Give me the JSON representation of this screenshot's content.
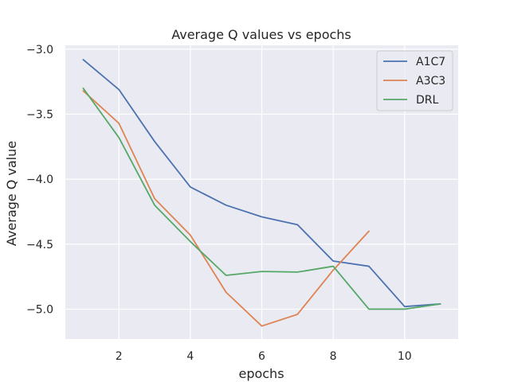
{
  "chart_data": {
    "type": "line",
    "title": "Average Q values vs epochs",
    "xlabel": "epochs",
    "ylabel": "Average Q value",
    "xlim": [
      0.5,
      11.5
    ],
    "ylim": [
      -5.23,
      -2.97
    ],
    "xticks": [
      2,
      4,
      6,
      8,
      10
    ],
    "yticks": [
      -3.0,
      -3.5,
      -4.0,
      -4.5,
      -5.0
    ],
    "ytick_labels": [
      "−3.0",
      "−3.5",
      "−4.0",
      "−4.5",
      "−5.0"
    ],
    "grid": true,
    "background": "#eaeaf2",
    "legend_position": "top-right",
    "series": [
      {
        "name": "A1C7",
        "color": "#4c72b0",
        "x": [
          1,
          2,
          3,
          4,
          5,
          6,
          7,
          8,
          9,
          10,
          11
        ],
        "values": [
          -3.08,
          -3.31,
          -3.71,
          -4.06,
          -4.2,
          -4.29,
          -4.35,
          -4.63,
          -4.67,
          -4.98,
          -4.96
        ]
      },
      {
        "name": "A3C3",
        "color": "#dd8452",
        "x": [
          1,
          2,
          3,
          4,
          5,
          6,
          7,
          8,
          9
        ],
        "values": [
          -3.32,
          -3.57,
          -4.15,
          -4.43,
          -4.87,
          -5.13,
          -5.04,
          -4.7,
          -4.4
        ]
      },
      {
        "name": "DRL",
        "color": "#55a868",
        "x": [
          1,
          2,
          3,
          4,
          5,
          6,
          7,
          8,
          9,
          10,
          11
        ],
        "values": [
          -3.3,
          -3.68,
          -4.2,
          -4.48,
          -4.74,
          -4.71,
          -4.715,
          -4.67,
          -5.0,
          -5.0,
          -4.96
        ]
      }
    ]
  }
}
